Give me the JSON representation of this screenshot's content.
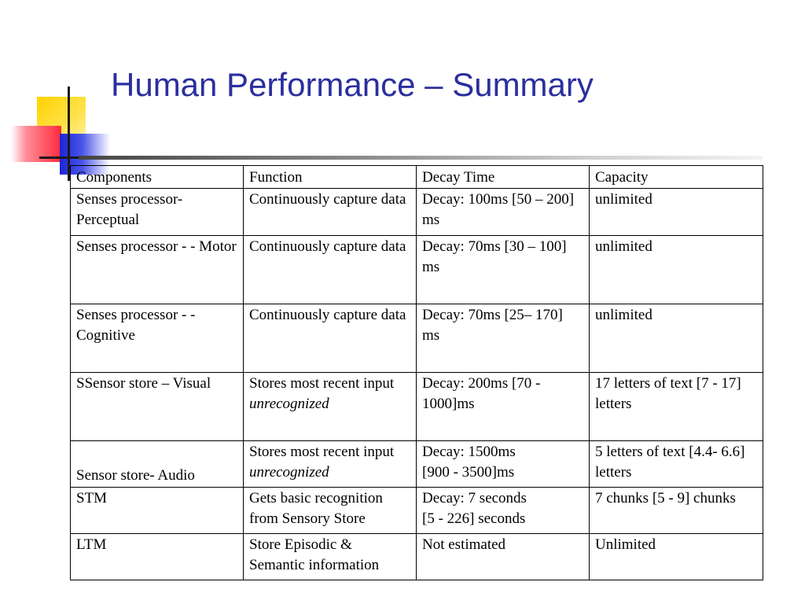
{
  "slide": {
    "title": "Human Performance – Summary"
  },
  "table": {
    "headers": [
      "Components",
      "Function",
      "Decay Time",
      "Capacity"
    ],
    "rows": [
      {
        "component": "Senses processor- Perceptual",
        "function": "Continuously capture data",
        "decay": "Decay: 100ms [50 – 200] ms",
        "capacity": "unlimited"
      },
      {
        "component": "Senses processor - - Motor",
        "function": "Continuously capture data",
        "decay": "Decay: 70ms [30 – 100] ms",
        "capacity": "unlimited"
      },
      {
        "component": "Senses processor - - Cognitive",
        "function": "Continuously capture data",
        "decay": "Decay: 70ms [25– 170] ms",
        "capacity": "unlimited"
      },
      {
        "component": "SSensor store – Visual",
        "function_prefix": "Stores most recent input ",
        "function_emph": "unrecognized",
        "decay": "Decay: 200ms [70 - 1000]ms",
        "capacity": "17 letters of text [7 - 17] letters"
      },
      {
        "component": "Sensor store- Audio",
        "function_prefix": "Stores most recent input ",
        "function_emph": "unrecognized",
        "decay_line1": "Decay: 1500ms",
        "decay_line2": "[900 - 3500]ms",
        "capacity": "5 letters of text [4.4- 6.6] letters"
      },
      {
        "component": "STM",
        "function": "Gets basic recognition from Sensory Store",
        "decay_line1": "Decay: 7 seconds",
        "decay_line2": "[5 - 226] seconds",
        "capacity": "7 chunks [5 - 9] chunks"
      },
      {
        "component": "LTM",
        "function": "Store Episodic & Semantic information",
        "decay": "Not estimated",
        "capacity": "Unlimited"
      }
    ]
  },
  "colors": {
    "title": "#2b2f9e",
    "accent_yellow": "#ffd200",
    "accent_red": "#ff2a3c",
    "accent_blue": "#1d24d8"
  }
}
